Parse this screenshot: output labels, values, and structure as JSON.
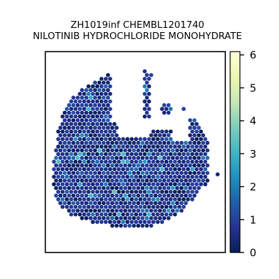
{
  "chart_data": {
    "type": "heatmap",
    "subtype": "hexbin spatial spot map",
    "title": [
      "ZH1019inf CHEMBL1201740",
      "NILOTINIB HYDROCHLORIDE MONOHYDRATE"
    ],
    "xlabel": "",
    "ylabel": "",
    "colorbar": {
      "colormap": "YlGnBu",
      "range": [
        0,
        6.1
      ],
      "ticks": [
        0,
        1,
        2,
        3,
        4,
        5,
        6
      ],
      "tick_labels": [
        "0",
        "1",
        "2",
        "3",
        "4",
        "5",
        "6"
      ],
      "placement": "right"
    },
    "value_summary": {
      "typical_range": [
        0,
        1.6
      ],
      "max_observed_approx": 3.5
    },
    "grid": false,
    "legend": "none"
  }
}
